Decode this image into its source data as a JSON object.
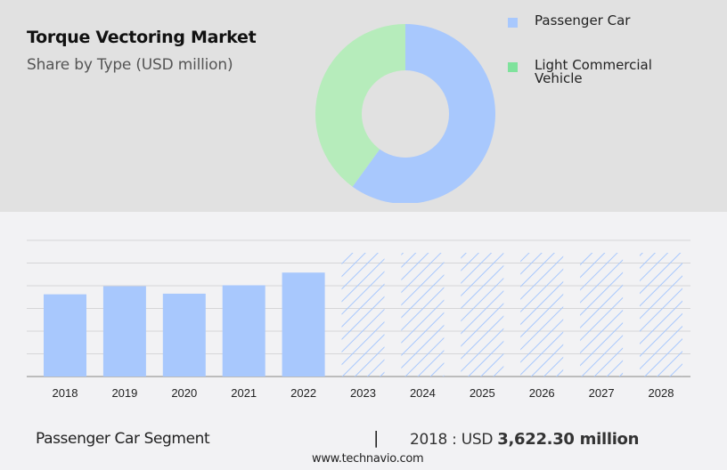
{
  "header": {
    "title": "Torque Vectoring Market",
    "subtitle": "Share by Type (USD million)"
  },
  "legend": [
    {
      "label": "Passenger Car",
      "color": "#a8c8fd"
    },
    {
      "label": "Light Commercial Vehicle",
      "color": "#7fe29c"
    }
  ],
  "footer": {
    "segment": "Passenger Car Segment",
    "separator": "|",
    "year_prefix": "2018 : USD ",
    "value": "3,622.30 million",
    "source": "www.technavio.com"
  },
  "chart_data": [
    {
      "type": "pie",
      "title": "Torque Vectoring Market",
      "subtitle": "Share by Type (USD million)",
      "donut": true,
      "labels": [
        "Passenger Car",
        "Light Commercial Vehicle"
      ],
      "values": [
        60,
        40
      ],
      "colors": [
        "#a8c8fd",
        "#b6ecbb"
      ],
      "legend_position": "right"
    },
    {
      "type": "bar",
      "title": "Passenger Car Segment",
      "categories": [
        "2018",
        "2019",
        "2020",
        "2021",
        "2022",
        "2023",
        "2024",
        "2025",
        "2026",
        "2027",
        "2028"
      ],
      "values": [
        3622.3,
        3980,
        3650,
        4020,
        4580,
        null,
        null,
        null,
        null,
        null,
        null
      ],
      "forecast": [
        false,
        false,
        false,
        false,
        false,
        true,
        true,
        true,
        true,
        true,
        true
      ],
      "forecast_display_height": 5450,
      "ylim": [
        0,
        6000
      ],
      "yticks_hidden": true,
      "grid": true,
      "bar_color": "#a8c8fd",
      "xlabel": "",
      "ylabel": ""
    }
  ]
}
